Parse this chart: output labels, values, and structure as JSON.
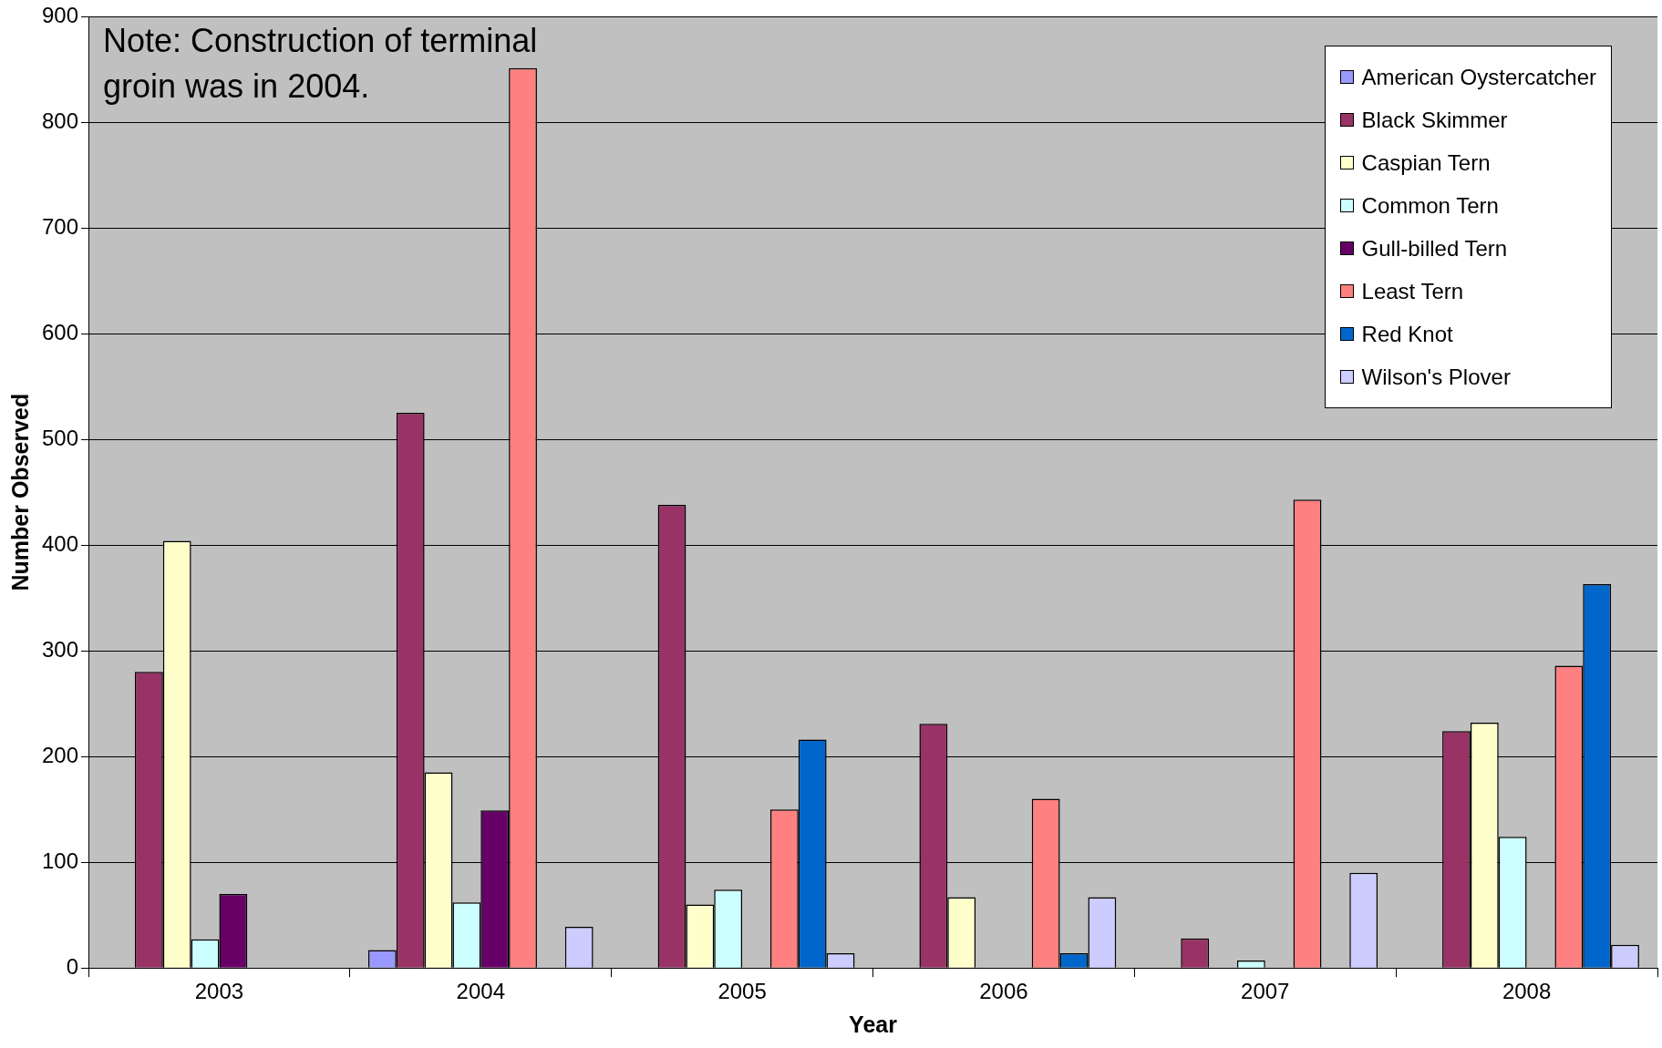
{
  "chart_data": {
    "type": "bar",
    "xlabel": "Year",
    "ylabel": "Number Observed",
    "categories": [
      "2003",
      "2004",
      "2005",
      "2006",
      "2007",
      "2008"
    ],
    "series": [
      {
        "name": "American Oystercatcher",
        "color": "#9999ff",
        "values": [
          null,
          17,
          null,
          null,
          null,
          null
        ]
      },
      {
        "name": "Black Skimmer",
        "color": "#993366",
        "values": [
          280,
          525,
          438,
          231,
          28,
          224
        ]
      },
      {
        "name": "Caspian Tern",
        "color": "#ffffcc",
        "values": [
          404,
          185,
          60,
          67,
          null,
          232
        ]
      },
      {
        "name": "Common Tern",
        "color": "#ccffff",
        "values": [
          27,
          62,
          74,
          null,
          7,
          124
        ]
      },
      {
        "name": "Gull-billed Tern",
        "color": "#660066",
        "values": [
          70,
          149,
          null,
          null,
          null,
          null
        ]
      },
      {
        "name": "Least Tern",
        "color": "#ff8080",
        "values": [
          null,
          851,
          150,
          160,
          443,
          286
        ]
      },
      {
        "name": "Red Knot",
        "color": "#0066cc",
        "values": [
          null,
          null,
          216,
          14,
          null,
          363
        ]
      },
      {
        "name": "Wilson's Plover",
        "color": "#ccccff",
        "values": [
          null,
          39,
          14,
          67,
          90,
          22
        ]
      }
    ],
    "ylim": [
      0,
      900
    ],
    "yticks": [
      0,
      100,
      200,
      300,
      400,
      500,
      600,
      700,
      800,
      900
    ],
    "grid": "y",
    "legend": "top right",
    "annotations": [
      "Note: Construction of terminal groin was in 2004."
    ]
  }
}
